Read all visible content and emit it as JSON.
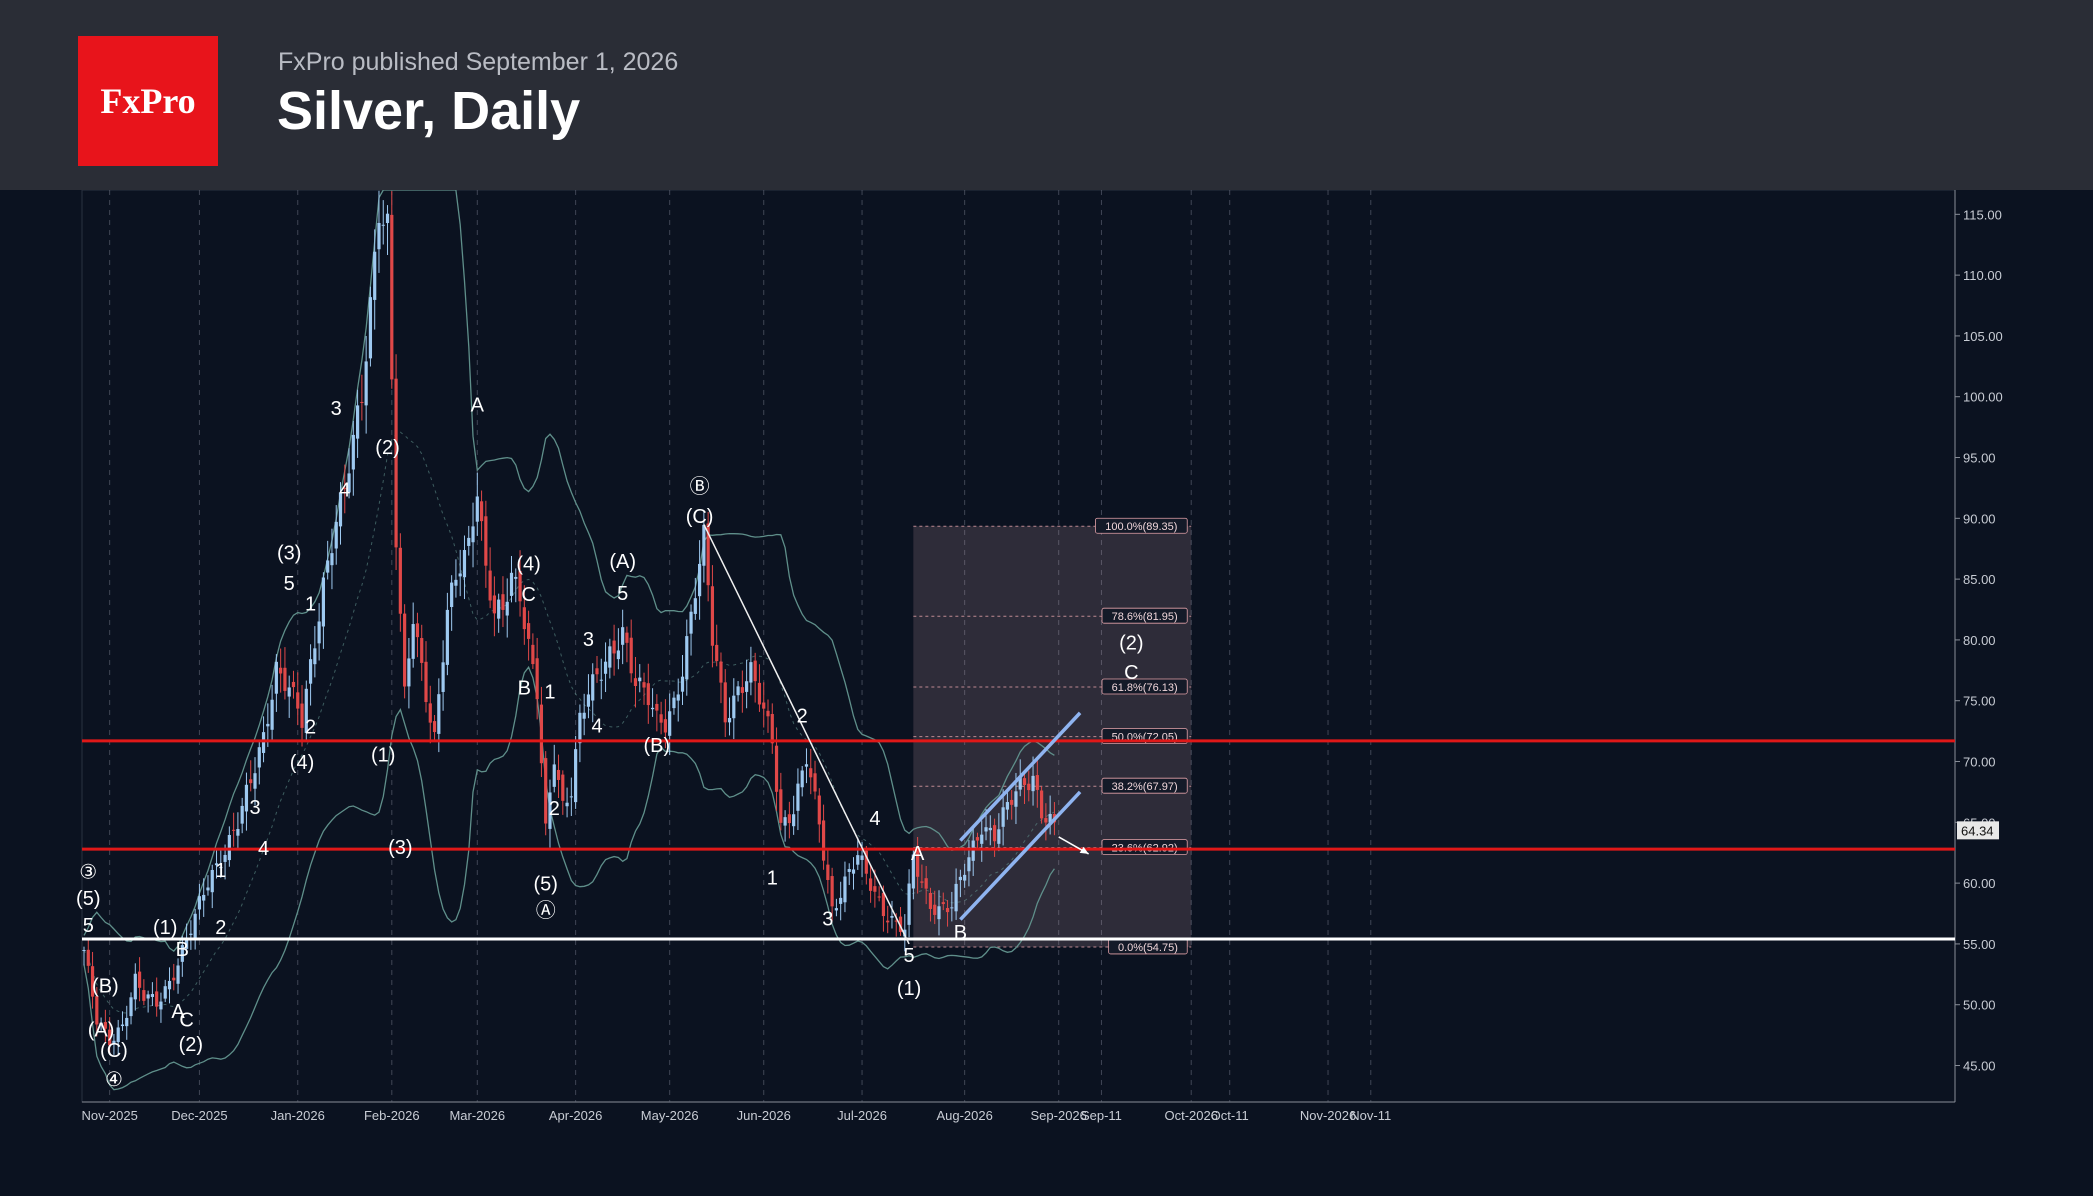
{
  "header": {
    "logo_text": "FxPro",
    "subtitle": "FxPro published September 1, 2026",
    "title": "Silver, Daily"
  },
  "colors": {
    "background": "#0b1220",
    "header_bg": "#2a2d36",
    "logo_red": "#e8141b",
    "up_candle": "#9ec9f0",
    "down_candle": "#e04848",
    "support_resistance": "#e01818",
    "support_white": "#ffffff",
    "channel": "#8fb4f0",
    "bollinger": "#5f8f8a"
  },
  "chart_data": {
    "type": "candlestick",
    "instrument": "Silver",
    "timeframe": "Daily",
    "ylim": [
      41,
      117
    ],
    "y_ticks": [
      45,
      50,
      55,
      60,
      65,
      70,
      75,
      80,
      85,
      90,
      95,
      100,
      105,
      110,
      115
    ],
    "x_ticks": [
      {
        "label": "Nov-2025",
        "t": 6
      },
      {
        "label": "Dec-2025",
        "t": 27
      },
      {
        "label": "Jan-2026",
        "t": 50
      },
      {
        "label": "Feb-2026",
        "t": 72
      },
      {
        "label": "Mar-2026",
        "t": 92
      },
      {
        "label": "Apr-2026",
        "t": 115
      },
      {
        "label": "May-2026",
        "t": 137
      },
      {
        "label": "Jun-2026",
        "t": 159
      },
      {
        "label": "Jul-2026",
        "t": 182
      },
      {
        "label": "Aug-2026",
        "t": 206
      },
      {
        "label": "Sep-2026",
        "t": 228
      },
      {
        "label": "Sep-11",
        "t": 238
      },
      {
        "label": "Oct-2026",
        "t": 259
      },
      {
        "label": "Oct-11",
        "t": 268
      },
      {
        "label": "Nov-2026",
        "t": 291
      },
      {
        "label": "Nov-11",
        "t": 301
      }
    ],
    "grid": true,
    "last_price": "64.34",
    "price_path": [
      [
        0,
        54.5
      ],
      [
        3,
        48.5
      ],
      [
        6,
        47
      ],
      [
        9,
        48.5
      ],
      [
        12,
        52
      ],
      [
        14,
        50.5
      ],
      [
        17,
        50
      ],
      [
        20,
        52
      ],
      [
        23,
        54.5
      ],
      [
        26,
        57
      ],
      [
        29,
        60
      ],
      [
        33,
        63
      ],
      [
        36,
        65
      ],
      [
        39,
        68
      ],
      [
        42,
        72
      ],
      [
        45,
        78
      ],
      [
        48,
        76
      ],
      [
        51,
        73
      ],
      [
        54,
        80
      ],
      [
        56,
        85
      ],
      [
        59,
        90
      ],
      [
        61,
        92
      ],
      [
        63,
        96
      ],
      [
        65,
        100
      ],
      [
        67,
        108
      ],
      [
        69,
        116
      ],
      [
        71,
        114
      ],
      [
        73,
        88
      ],
      [
        75,
        75
      ],
      [
        77,
        82
      ],
      [
        79,
        78
      ],
      [
        82,
        72
      ],
      [
        85,
        82
      ],
      [
        88,
        86
      ],
      [
        90,
        88
      ],
      [
        92,
        93
      ],
      [
        94,
        86
      ],
      [
        96,
        82
      ],
      [
        98,
        82
      ],
      [
        100,
        85
      ],
      [
        102,
        84
      ],
      [
        104,
        80
      ],
      [
        106,
        76
      ],
      [
        108,
        64
      ],
      [
        110,
        70
      ],
      [
        112,
        66
      ],
      [
        114,
        68
      ],
      [
        116,
        74
      ],
      [
        118,
        76
      ],
      [
        121,
        77
      ],
      [
        124,
        79
      ],
      [
        126,
        81
      ],
      [
        129,
        77
      ],
      [
        132,
        75
      ],
      [
        134,
        73
      ],
      [
        136,
        73
      ],
      [
        138,
        75
      ],
      [
        140,
        78
      ],
      [
        143,
        84
      ],
      [
        145,
        88
      ],
      [
        147,
        80
      ],
      [
        150,
        74
      ],
      [
        153,
        76
      ],
      [
        156,
        77
      ],
      [
        159,
        74
      ],
      [
        161,
        72
      ],
      [
        163,
        65
      ],
      [
        166,
        66
      ],
      [
        169,
        70
      ],
      [
        172,
        65
      ],
      [
        175,
        58
      ],
      [
        178,
        60
      ],
      [
        181,
        62
      ],
      [
        184,
        60
      ],
      [
        187,
        58
      ],
      [
        190,
        56.5
      ],
      [
        192,
        56
      ],
      [
        194,
        62
      ],
      [
        196,
        60
      ],
      [
        198,
        58.5
      ],
      [
        200,
        58
      ],
      [
        203,
        58
      ],
      [
        205,
        60
      ],
      [
        207,
        62
      ],
      [
        210,
        65
      ],
      [
        213,
        64
      ],
      [
        216,
        66
      ],
      [
        219,
        68
      ],
      [
        222,
        69
      ],
      [
        224,
        66
      ],
      [
        226,
        65
      ],
      [
        227,
        64.34
      ]
    ],
    "horizontal_lines": [
      {
        "value": 71.7,
        "color": "red"
      },
      {
        "value": 62.8,
        "color": "red"
      },
      {
        "value": 55.4,
        "color": "white"
      }
    ],
    "fibonacci": {
      "t_start": 194,
      "t_end": 259,
      "levels": [
        {
          "label": "100.0%(89.35)",
          "value": 89.35
        },
        {
          "label": "78.6%(81.95)",
          "value": 81.95
        },
        {
          "label": "61.8%(76.13)",
          "value": 76.13
        },
        {
          "label": "50.0%(72.05)",
          "value": 72.05
        },
        {
          "label": "38.2%(67.97)",
          "value": 67.97
        },
        {
          "label": "23.6%(62.92)",
          "value": 62.92
        },
        {
          "label": "0.0%(54.75)",
          "value": 54.75
        }
      ]
    },
    "trendline": {
      "from": [
        145,
        89.5
      ],
      "to": [
        193,
        55
      ]
    },
    "channel": {
      "upper": {
        "from": [
          205,
          63.5
        ],
        "to": [
          233,
          74
        ]
      },
      "lower": {
        "from": [
          205,
          57
        ],
        "to": [
          233,
          67.5
        ]
      }
    },
    "projection_arrow": {
      "from": [
        228,
        63.8
      ],
      "to": [
        235,
        62.4
      ]
    },
    "wave_labels": [
      {
        "text": "③",
        "t": 1,
        "v": 60.4
      },
      {
        "text": "(5)",
        "t": 1,
        "v": 58.2
      },
      {
        "text": "5",
        "t": 1,
        "v": 56
      },
      {
        "text": "(B)",
        "t": 5,
        "v": 51
      },
      {
        "text": "(A)",
        "t": 4,
        "v": 47.4
      },
      {
        "text": "(C)",
        "t": 7,
        "v": 45.7
      },
      {
        "text": "④",
        "t": 7,
        "v": 43.3
      },
      {
        "text": "(1)",
        "t": 19,
        "v": 55.8
      },
      {
        "text": "B",
        "t": 23,
        "v": 54
      },
      {
        "text": "A",
        "t": 22,
        "v": 48.9
      },
      {
        "text": "C",
        "t": 24,
        "v": 48.2
      },
      {
        "text": "(2)",
        "t": 25,
        "v": 46.2
      },
      {
        "text": "1",
        "t": 32,
        "v": 60.5
      },
      {
        "text": "2",
        "t": 32,
        "v": 55.8
      },
      {
        "text": "3",
        "t": 40,
        "v": 65.7
      },
      {
        "text": "4",
        "t": 42,
        "v": 62.3
      },
      {
        "text": "(3)",
        "t": 48,
        "v": 86.6
      },
      {
        "text": "5",
        "t": 48,
        "v": 84.1
      },
      {
        "text": "1",
        "t": 53,
        "v": 82.4
      },
      {
        "text": "2",
        "t": 53,
        "v": 72.3
      },
      {
        "text": "(4)",
        "t": 51,
        "v": 69.4
      },
      {
        "text": "3",
        "t": 59,
        "v": 98.5
      },
      {
        "text": "4",
        "t": 61,
        "v": 91.8
      },
      {
        "text": "(2)",
        "t": 71,
        "v": 95.3
      },
      {
        "text": "(1)",
        "t": 70,
        "v": 70
      },
      {
        "text": "(3)",
        "t": 74,
        "v": 62.4
      },
      {
        "text": "A",
        "t": 92,
        "v": 98.8
      },
      {
        "text": "(4)",
        "t": 104,
        "v": 85.7
      },
      {
        "text": "C",
        "t": 104,
        "v": 83.2
      },
      {
        "text": "B",
        "t": 103,
        "v": 75.5
      },
      {
        "text": "1",
        "t": 109,
        "v": 75.2
      },
      {
        "text": "2",
        "t": 110,
        "v": 65.6
      },
      {
        "text": "(5)",
        "t": 108,
        "v": 59.4
      },
      {
        "text": "Ⓐ",
        "t": 108,
        "v": 57.2
      },
      {
        "text": "3",
        "t": 118,
        "v": 79.5
      },
      {
        "text": "4",
        "t": 120,
        "v": 72.4
      },
      {
        "text": "(A)",
        "t": 126,
        "v": 85.9
      },
      {
        "text": "5",
        "t": 126,
        "v": 83.3
      },
      {
        "text": "(B)",
        "t": 134,
        "v": 70.8
      },
      {
        "text": "Ⓑ",
        "t": 144,
        "v": 92.1
      },
      {
        "text": "(C)",
        "t": 144,
        "v": 89.6
      },
      {
        "text": "2",
        "t": 168,
        "v": 73.2
      },
      {
        "text": "1",
        "t": 161,
        "v": 59.9
      },
      {
        "text": "4",
        "t": 185,
        "v": 64.8
      },
      {
        "text": "3",
        "t": 174,
        "v": 56.5
      },
      {
        "text": "A",
        "t": 195,
        "v": 61.9
      },
      {
        "text": "5",
        "t": 193,
        "v": 53.5
      },
      {
        "text": "(1)",
        "t": 193,
        "v": 50.8
      },
      {
        "text": "B",
        "t": 205,
        "v": 55.4
      },
      {
        "text": "(2)",
        "t": 245,
        "v": 79.2
      },
      {
        "text": "C",
        "t": 245,
        "v": 76.8
      }
    ]
  }
}
